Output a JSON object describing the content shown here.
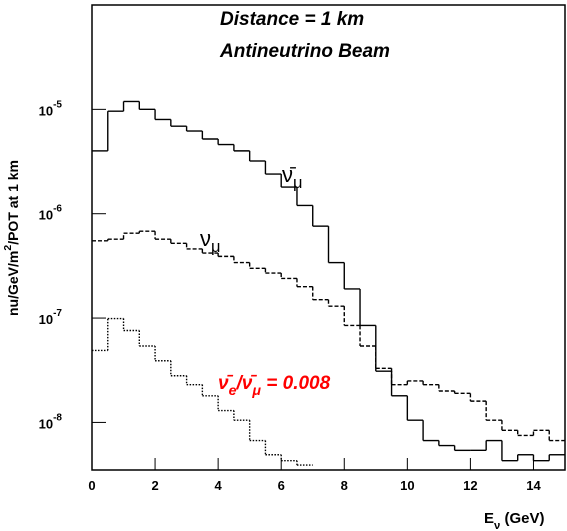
{
  "chart_data": {
    "type": "histogram",
    "annotations": [
      {
        "text": "Distance = 1 km"
      },
      {
        "text": "Antineutrino Beam"
      }
    ],
    "curve_labels": [
      {
        "parts": [
          {
            "t": "ν̄",
            "sub": false
          },
          {
            "t": "μ",
            "sub": true
          }
        ],
        "color": "#000000"
      },
      {
        "parts": [
          {
            "t": "ν",
            "sub": false
          },
          {
            "t": "μ",
            "sub": true
          }
        ],
        "color": "#000000"
      },
      {
        "parts": [
          {
            "t": "ν̄",
            "sub": false
          },
          {
            "t": "e",
            "sub": true
          },
          {
            "t": "/ν̄",
            "sub": false
          },
          {
            "t": "μ",
            "sub": true
          },
          {
            "t": " = 0.008",
            "sub": false
          }
        ],
        "color": "#ff0000"
      }
    ],
    "xlabel": [
      {
        "t": "E",
        "sub": false
      },
      {
        "t": "ν",
        "sub": true
      },
      {
        "t": " (GeV)",
        "sub": false
      }
    ],
    "ylabel": [
      {
        "t": "nu/GeV/m",
        "sup": false
      },
      {
        "t": "2",
        "sup": true
      },
      {
        "t": "/POT at 1 km",
        "sup": false
      }
    ],
    "bins": [
      0,
      0.5,
      1,
      1.5,
      2,
      2.5,
      3,
      3.5,
      4,
      4.5,
      5,
      5.5,
      6,
      6.5,
      7,
      7.5,
      8,
      8.5,
      9,
      9.5,
      10,
      10.5,
      11,
      11.5,
      12,
      12.5,
      13,
      13.5,
      14,
      14.5,
      15
    ],
    "series": [
      {
        "color": "#000000",
        "dash": "solid",
        "values": [
          4e-06,
          9.6e-06,
          1.19e-05,
          1e-05,
          8e-06,
          6.9e-06,
          6.2e-06,
          5.2e-06,
          4.6e-06,
          4e-06,
          3.2e-06,
          2.4e-06,
          1.8e-06,
          1.2e-06,
          7.6e-07,
          3.4e-07,
          1.9e-07,
          8.5e-08,
          3.1e-08,
          1.8e-08,
          1.05e-08,
          6.7e-09,
          6e-09,
          5.4e-09,
          5.4e-09,
          6.7e-09,
          4.3e-09,
          4.9e-09,
          4.3e-09,
          4.9e-09
        ]
      },
      {
        "color": "#000000",
        "dash": "dashed",
        "values": [
          5.5e-07,
          5.7e-07,
          6.5e-07,
          6.8e-07,
          5.7e-07,
          5.2e-07,
          4.6e-07,
          4.2e-07,
          3.9e-07,
          3.4e-07,
          3e-07,
          2.7e-07,
          2.4e-07,
          2e-07,
          1.5e-07,
          1.3e-07,
          8.5e-08,
          5.4e-08,
          3.3e-08,
          2.3e-08,
          2.5e-08,
          2.3e-08,
          2e-08,
          1.9e-08,
          1.6e-08,
          1.05e-08,
          8.4e-09,
          7.5e-09,
          8.4e-09,
          6.7e-09
        ]
      },
      {
        "color": "#000000",
        "dash": "dotted",
        "values": [
          4.9e-08,
          9.9e-08,
          7.6e-08,
          5.4e-08,
          3.9e-08,
          2.8e-08,
          2.3e-08,
          1.8e-08,
          1.3e-08,
          1.05e-08,
          6.7e-09,
          4.9e-09,
          4.3e-09,
          3.9e-09,
          null,
          null,
          null,
          null,
          null,
          null,
          null,
          null,
          null,
          null,
          null,
          null,
          null,
          null,
          null,
          null
        ]
      }
    ],
    "xlim": [
      0,
      15
    ],
    "xticks": [
      0,
      2,
      4,
      6,
      8,
      10,
      12,
      14
    ],
    "ylim": [
      3.5e-09,
      0.0001
    ],
    "log_y": true,
    "yticks": [
      {
        "value": 1e-08,
        "label": "10",
        "exponent": "-8"
      },
      {
        "value": 1e-07,
        "label": "10",
        "exponent": "-7"
      },
      {
        "value": 1e-06,
        "label": "10",
        "exponent": "-6"
      },
      {
        "value": 1e-05,
        "label": "10",
        "exponent": "-5"
      }
    ]
  }
}
